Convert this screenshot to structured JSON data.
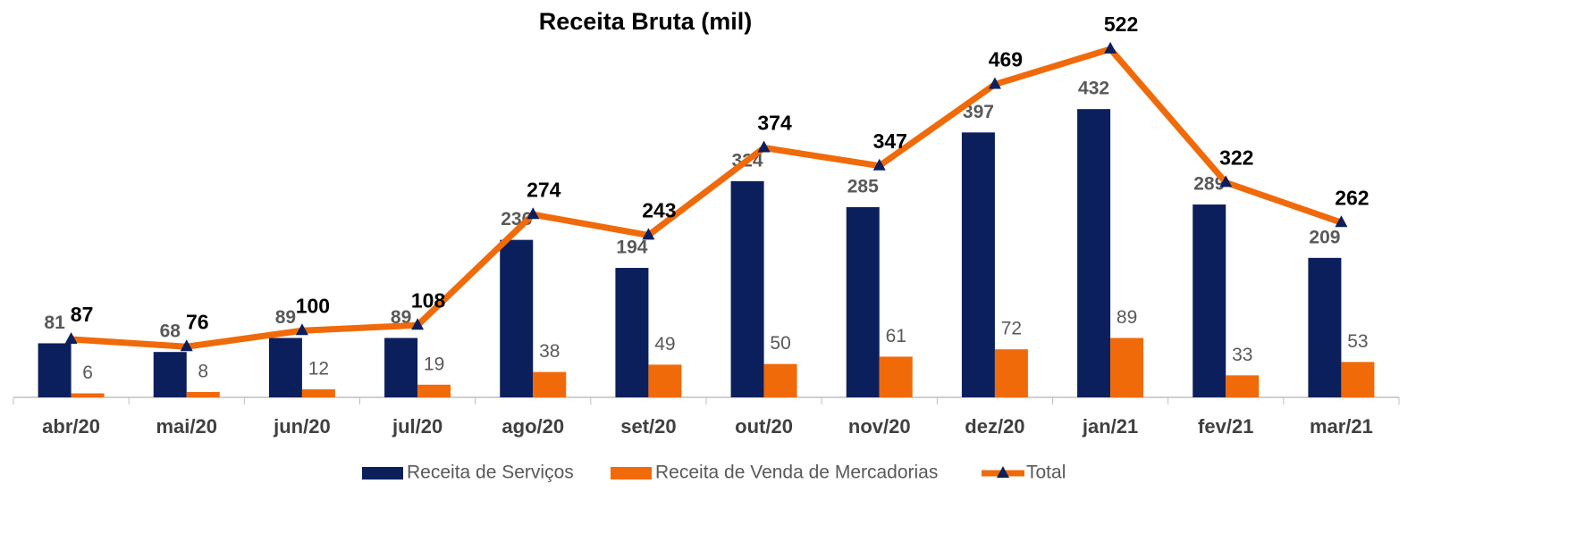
{
  "chart_data": {
    "type": "bar",
    "title": "Receita Bruta (mil)",
    "categories": [
      "abr/20",
      "mai/20",
      "jun/20",
      "jul/20",
      "ago/20",
      "set/20",
      "out/20",
      "nov/20",
      "dez/20",
      "jan/21",
      "fev/21",
      "mar/21"
    ],
    "series": [
      {
        "name": "Receita de Serviços",
        "color": "#0b1f5c",
        "type": "bar",
        "values": [
          81,
          68,
          89,
          89,
          236,
          194,
          324,
          285,
          397,
          432,
          289,
          209
        ]
      },
      {
        "name": "Receita de Venda de Mercadorias",
        "color": "#f06a0a",
        "type": "bar",
        "values": [
          6,
          8,
          12,
          19,
          38,
          49,
          50,
          61,
          72,
          89,
          33,
          53
        ]
      },
      {
        "name": "Total",
        "color": "#f06a0a",
        "type": "line",
        "values": [
          87,
          76,
          100,
          108,
          274,
          243,
          374,
          347,
          469,
          522,
          322,
          262
        ]
      }
    ],
    "ylim": [
      0,
      550
    ]
  }
}
